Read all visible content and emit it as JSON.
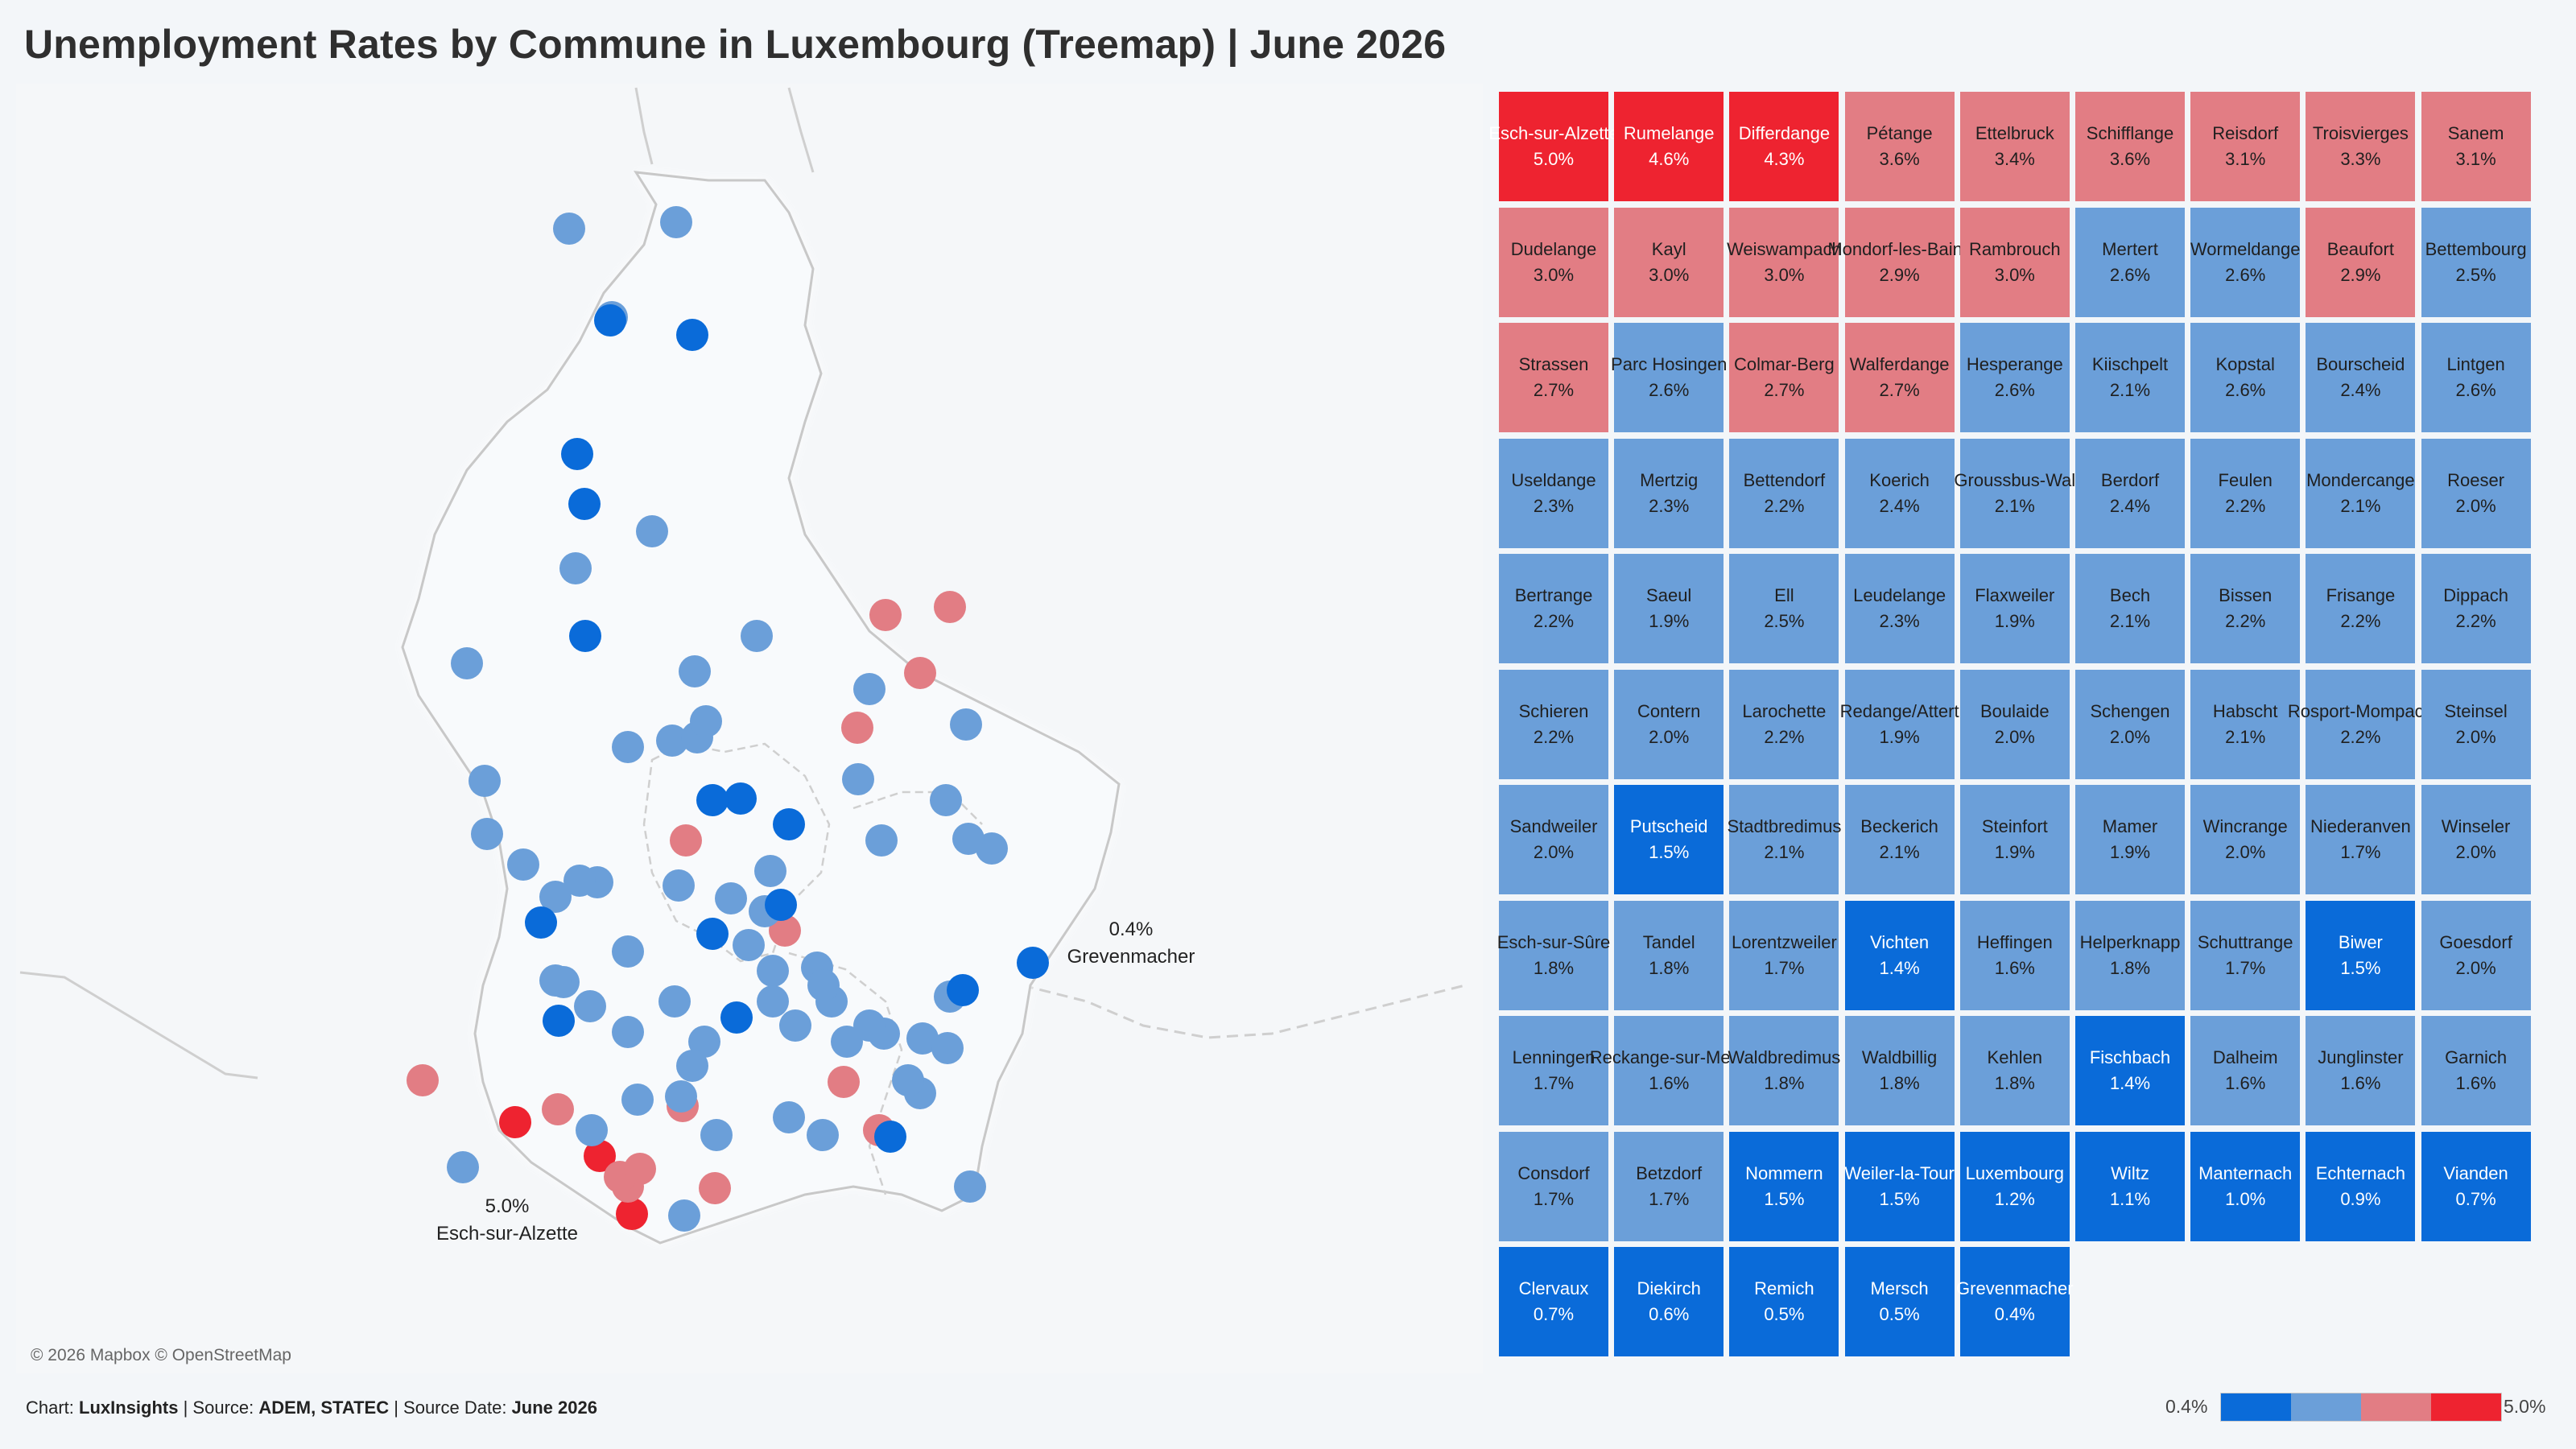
{
  "title": "Unemployment Rates by Commune in Luxembourg (Treemap) | June 2026",
  "colors": {
    "high": "#ee2330",
    "mid_high": "#e27d84",
    "mid_low": "#6b9fd9",
    "low": "#0a6bd9"
  },
  "map": {
    "attribution": "© 2026 Mapbox © OpenStreetMap",
    "labels": [
      {
        "value": "5.0%",
        "name": "Esch-sur-Alzette"
      },
      {
        "value": "0.4%",
        "name": "Grevenmacher"
      }
    ]
  },
  "footer": {
    "chart_prefix": "Chart: ",
    "chart_source": "LuxInsights",
    "source_prefix": " | Source: ",
    "source": "ADEM, STATEC",
    "date_prefix": " | Source Date: ",
    "date": "June 2026"
  },
  "legend": {
    "min": "0.4%",
    "max": "5.0%"
  },
  "chart_data": {
    "type": "treemap",
    "title": "Unemployment Rates by Commune in Luxembourg (Treemap) | June 2026",
    "unit": "%",
    "color_range": [
      0.4,
      5.0
    ],
    "items": [
      {
        "name": "Esch-sur-Alzette",
        "value": 5.0,
        "label": "5.0%"
      },
      {
        "name": "Rumelange",
        "value": 4.6,
        "label": "4.6%"
      },
      {
        "name": "Differdange",
        "value": 4.3,
        "label": "4.3%"
      },
      {
        "name": "Pétange",
        "value": 3.6,
        "label": "3.6%"
      },
      {
        "name": "Ettelbruck",
        "value": 3.4,
        "label": "3.4%"
      },
      {
        "name": "Schifflange",
        "value": 3.6,
        "label": "3.6%"
      },
      {
        "name": "Reisdorf",
        "value": 3.1,
        "label": "3.1%"
      },
      {
        "name": "Troisvierges",
        "value": 3.3,
        "label": "3.3%"
      },
      {
        "name": "Sanem",
        "value": 3.1,
        "label": "3.1%"
      },
      {
        "name": "Dudelange",
        "value": 3.0,
        "label": "3.0%"
      },
      {
        "name": "Kayl",
        "value": 3.0,
        "label": "3.0%"
      },
      {
        "name": "Weiswampach",
        "value": 3.0,
        "label": "3.0%"
      },
      {
        "name": "Mondorf-les-Bains",
        "value": 2.9,
        "label": "2.9%"
      },
      {
        "name": "Rambrouch",
        "value": 3.0,
        "label": "3.0%"
      },
      {
        "name": "Mertert",
        "value": 2.6,
        "label": "2.6%"
      },
      {
        "name": "Wormeldange",
        "value": 2.6,
        "label": "2.6%"
      },
      {
        "name": "Beaufort",
        "value": 2.9,
        "label": "2.9%"
      },
      {
        "name": "Bettembourg",
        "value": 2.5,
        "label": "2.5%"
      },
      {
        "name": "Strassen",
        "value": 2.7,
        "label": "2.7%"
      },
      {
        "name": "Parc Hosingen",
        "value": 2.6,
        "label": "2.6%"
      },
      {
        "name": "Colmar-Berg",
        "value": 2.7,
        "label": "2.7%"
      },
      {
        "name": "Walferdange",
        "value": 2.7,
        "label": "2.7%"
      },
      {
        "name": "Hesperange",
        "value": 2.6,
        "label": "2.6%"
      },
      {
        "name": "Kiischpelt",
        "value": 2.1,
        "label": "2.1%"
      },
      {
        "name": "Kopstal",
        "value": 2.6,
        "label": "2.6%"
      },
      {
        "name": "Bourscheid",
        "value": 2.4,
        "label": "2.4%"
      },
      {
        "name": "Lintgen",
        "value": 2.6,
        "label": "2.6%"
      },
      {
        "name": "Useldange",
        "value": 2.3,
        "label": "2.3%"
      },
      {
        "name": "Mertzig",
        "value": 2.3,
        "label": "2.3%"
      },
      {
        "name": "Bettendorf",
        "value": 2.2,
        "label": "2.2%"
      },
      {
        "name": "Koerich",
        "value": 2.4,
        "label": "2.4%"
      },
      {
        "name": "Groussbus-Wal",
        "value": 2.1,
        "label": "2.1%"
      },
      {
        "name": "Berdorf",
        "value": 2.4,
        "label": "2.4%"
      },
      {
        "name": "Feulen",
        "value": 2.2,
        "label": "2.2%"
      },
      {
        "name": "Mondercange",
        "value": 2.1,
        "label": "2.1%"
      },
      {
        "name": "Roeser",
        "value": 2.0,
        "label": "2.0%"
      },
      {
        "name": "Bertrange",
        "value": 2.2,
        "label": "2.2%"
      },
      {
        "name": "Saeul",
        "value": 1.9,
        "label": "1.9%"
      },
      {
        "name": "Ell",
        "value": 2.5,
        "label": "2.5%"
      },
      {
        "name": "Leudelange",
        "value": 2.3,
        "label": "2.3%"
      },
      {
        "name": "Flaxweiler",
        "value": 1.9,
        "label": "1.9%"
      },
      {
        "name": "Bech",
        "value": 2.1,
        "label": "2.1%"
      },
      {
        "name": "Bissen",
        "value": 2.2,
        "label": "2.2%"
      },
      {
        "name": "Frisange",
        "value": 2.2,
        "label": "2.2%"
      },
      {
        "name": "Dippach",
        "value": 2.2,
        "label": "2.2%"
      },
      {
        "name": "Schieren",
        "value": 2.2,
        "label": "2.2%"
      },
      {
        "name": "Contern",
        "value": 2.0,
        "label": "2.0%"
      },
      {
        "name": "Larochette",
        "value": 2.2,
        "label": "2.2%"
      },
      {
        "name": "Redange/Attert",
        "value": 1.9,
        "label": "1.9%"
      },
      {
        "name": "Boulaide",
        "value": 2.0,
        "label": "2.0%"
      },
      {
        "name": "Schengen",
        "value": 2.0,
        "label": "2.0%"
      },
      {
        "name": "Habscht",
        "value": 2.1,
        "label": "2.1%"
      },
      {
        "name": "Rosport-Mompach",
        "value": 2.2,
        "label": "2.2%"
      },
      {
        "name": "Steinsel",
        "value": 2.0,
        "label": "2.0%"
      },
      {
        "name": "Sandweiler",
        "value": 2.0,
        "label": "2.0%"
      },
      {
        "name": "Putscheid",
        "value": 1.5,
        "label": "1.5%"
      },
      {
        "name": "Stadtbredimus",
        "value": 2.1,
        "label": "2.1%"
      },
      {
        "name": "Beckerich",
        "value": 2.1,
        "label": "2.1%"
      },
      {
        "name": "Steinfort",
        "value": 1.9,
        "label": "1.9%"
      },
      {
        "name": "Mamer",
        "value": 1.9,
        "label": "1.9%"
      },
      {
        "name": "Wincrange",
        "value": 2.0,
        "label": "2.0%"
      },
      {
        "name": "Niederanven",
        "value": 1.7,
        "label": "1.7%"
      },
      {
        "name": "Winseler",
        "value": 2.0,
        "label": "2.0%"
      },
      {
        "name": "Esch-sur-Sûre",
        "value": 1.8,
        "label": "1.8%"
      },
      {
        "name": "Tandel",
        "value": 1.8,
        "label": "1.8%"
      },
      {
        "name": "Lorentzweiler",
        "value": 1.7,
        "label": "1.7%"
      },
      {
        "name": "Vichten",
        "value": 1.4,
        "label": "1.4%"
      },
      {
        "name": "Heffingen",
        "value": 1.6,
        "label": "1.6%"
      },
      {
        "name": "Helperknapp",
        "value": 1.8,
        "label": "1.8%"
      },
      {
        "name": "Schuttrange",
        "value": 1.7,
        "label": "1.7%"
      },
      {
        "name": "Biwer",
        "value": 1.5,
        "label": "1.5%"
      },
      {
        "name": "Goesdorf",
        "value": 2.0,
        "label": "2.0%"
      },
      {
        "name": "Lenningen",
        "value": 1.7,
        "label": "1.7%"
      },
      {
        "name": "Reckange-sur-Mess",
        "value": 1.6,
        "label": "1.6%"
      },
      {
        "name": "Waldbredimus",
        "value": 1.8,
        "label": "1.8%"
      },
      {
        "name": "Waldbillig",
        "value": 1.8,
        "label": "1.8%"
      },
      {
        "name": "Kehlen",
        "value": 1.8,
        "label": "1.8%"
      },
      {
        "name": "Fischbach",
        "value": 1.4,
        "label": "1.4%"
      },
      {
        "name": "Dalheim",
        "value": 1.6,
        "label": "1.6%"
      },
      {
        "name": "Junglinster",
        "value": 1.6,
        "label": "1.6%"
      },
      {
        "name": "Garnich",
        "value": 1.6,
        "label": "1.6%"
      },
      {
        "name": "Consdorf",
        "value": 1.7,
        "label": "1.7%"
      },
      {
        "name": "Betzdorf",
        "value": 1.7,
        "label": "1.7%"
      },
      {
        "name": "Nommern",
        "value": 1.5,
        "label": "1.5%"
      },
      {
        "name": "Weiler-la-Tour",
        "value": 1.5,
        "label": "1.5%"
      },
      {
        "name": "Luxembourg",
        "value": 1.2,
        "label": "1.2%"
      },
      {
        "name": "Wiltz",
        "value": 1.1,
        "label": "1.1%"
      },
      {
        "name": "Manternach",
        "value": 1.0,
        "label": "1.0%"
      },
      {
        "name": "Echternach",
        "value": 0.9,
        "label": "0.9%"
      },
      {
        "name": "Vianden",
        "value": 0.7,
        "label": "0.7%"
      },
      {
        "name": "Clervaux",
        "value": 0.7,
        "label": "0.7%"
      },
      {
        "name": "Diekirch",
        "value": 0.6,
        "label": "0.6%"
      },
      {
        "name": "Remich",
        "value": 0.5,
        "label": "0.5%"
      },
      {
        "name": "Mersch",
        "value": 0.5,
        "label": "0.5%"
      },
      {
        "name": "Grevenmacher",
        "value": 0.4,
        "label": "0.4%"
      }
    ]
  }
}
